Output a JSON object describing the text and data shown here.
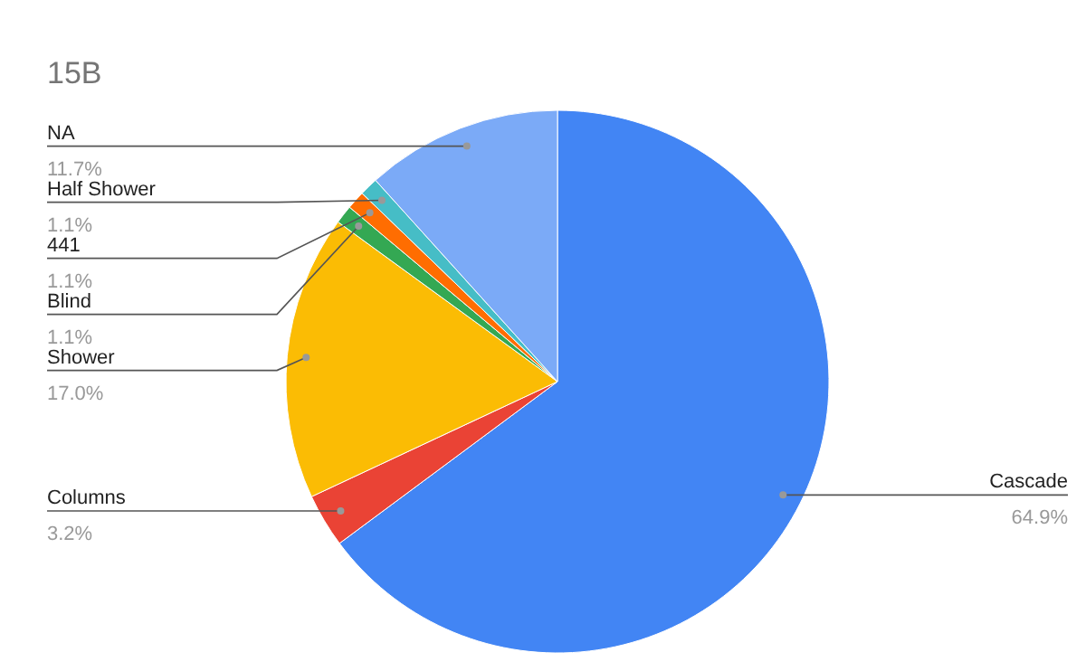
{
  "chart_data": {
    "type": "pie",
    "title": "15B",
    "categories": [
      "Cascade",
      "Columns",
      "Shower",
      "Blind",
      "441",
      "Half Shower",
      "NA"
    ],
    "values": [
      64.9,
      3.2,
      17.0,
      1.1,
      1.1,
      1.1,
      11.7
    ],
    "colors": [
      "#4285f4",
      "#ea4335",
      "#fbbc04",
      "#34a853",
      "#ff6d01",
      "#46bdc6",
      "#7baaf7"
    ],
    "value_labels": [
      "64.9%",
      "3.2%",
      "17.0%",
      "1.1%",
      "1.1%",
      "1.1%",
      "11.7%"
    ]
  }
}
